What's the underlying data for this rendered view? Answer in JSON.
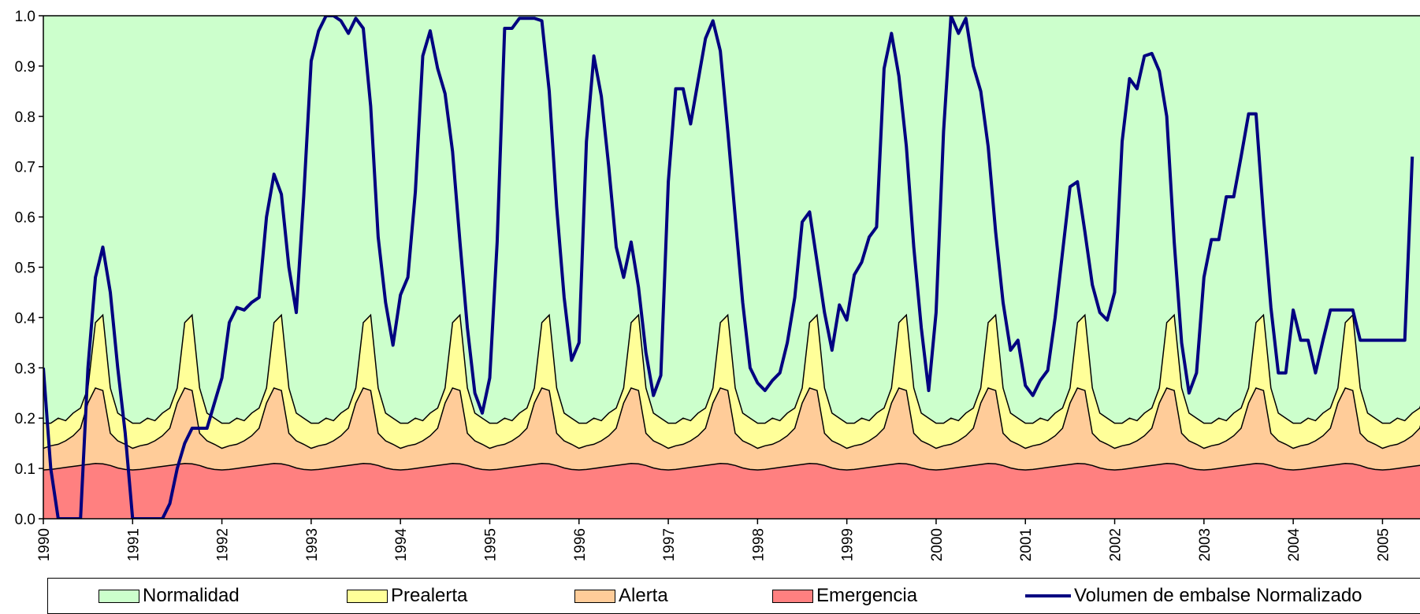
{
  "chart_data": {
    "type": "area",
    "title": "",
    "xlabel": "",
    "ylabel": "",
    "ylim": [
      0,
      1
    ],
    "xlim": [
      1990,
      2005.42
    ],
    "grid": false,
    "legend_position": "bottom",
    "y_ticks": [
      "0.0",
      "0.1",
      "0.2",
      "0.3",
      "0.4",
      "0.5",
      "0.6",
      "0.7",
      "0.8",
      "0.9",
      "1.0"
    ],
    "x_ticks": [
      "1990",
      "1991",
      "1992",
      "1993",
      "1994",
      "1995",
      "1996",
      "1997",
      "1998",
      "1999",
      "2000",
      "2001",
      "2002",
      "2003",
      "2004",
      "2005"
    ],
    "monthly_profile": {
      "emergencia": [
        0.097,
        0.098,
        0.1,
        0.102,
        0.104,
        0.106,
        0.108,
        0.11,
        0.109,
        0.106,
        0.101,
        0.098
      ],
      "alerta": [
        0.14,
        0.145,
        0.148,
        0.155,
        0.165,
        0.18,
        0.23,
        0.26,
        0.255,
        0.17,
        0.155,
        0.148
      ],
      "prealerta": [
        0.19,
        0.19,
        0.2,
        0.195,
        0.21,
        0.22,
        0.26,
        0.39,
        0.405,
        0.26,
        0.21,
        0.2
      ]
    },
    "series": [
      {
        "name": "Normalidad",
        "color": "#ccffcc",
        "upper_bound": 1.0
      },
      {
        "name": "Prealerta",
        "color": "#ffff99",
        "upper_bound_profile": "prealerta"
      },
      {
        "name": "Alerta",
        "color": "#ffcc99",
        "upper_bound_profile": "alerta"
      },
      {
        "name": "Emergencia",
        "color": "#ff8080",
        "upper_bound_profile": "emergencia"
      },
      {
        "name": "Volumen de embalse Normalizado",
        "color": "#000080",
        "type": "line",
        "start": 1990.0,
        "step_months": 1,
        "values": [
          0.3,
          0.1,
          0.0,
          0.0,
          0.0,
          0.0,
          0.3,
          0.48,
          0.54,
          0.45,
          0.3,
          0.17,
          0.0,
          0.0,
          0.0,
          0.0,
          0.0,
          0.03,
          0.1,
          0.15,
          0.18,
          0.18,
          0.18,
          0.23,
          0.28,
          0.39,
          0.42,
          0.415,
          0.43,
          0.44,
          0.6,
          0.685,
          0.645,
          0.5,
          0.41,
          0.64,
          0.91,
          0.97,
          1.0,
          1.0,
          0.99,
          0.965,
          0.995,
          0.975,
          0.82,
          0.56,
          0.43,
          0.345,
          0.445,
          0.48,
          0.65,
          0.92,
          0.97,
          0.895,
          0.845,
          0.73,
          0.55,
          0.38,
          0.25,
          0.21,
          0.28,
          0.55,
          0.975,
          0.975,
          0.995,
          0.995,
          0.995,
          0.99,
          0.85,
          0.62,
          0.44,
          0.315,
          0.35,
          0.75,
          0.92,
          0.84,
          0.7,
          0.54,
          0.48,
          0.55,
          0.46,
          0.33,
          0.245,
          0.285,
          0.67,
          0.855,
          0.855,
          0.785,
          0.87,
          0.955,
          0.99,
          0.93,
          0.77,
          0.6,
          0.43,
          0.3,
          0.27,
          0.255,
          0.275,
          0.29,
          0.35,
          0.44,
          0.59,
          0.61,
          0.51,
          0.41,
          0.335,
          0.425,
          0.395,
          0.485,
          0.51,
          0.56,
          0.58,
          0.895,
          0.965,
          0.88,
          0.74,
          0.54,
          0.38,
          0.255,
          0.41,
          0.77,
          1.0,
          0.965,
          0.995,
          0.9,
          0.85,
          0.74,
          0.57,
          0.43,
          0.335,
          0.355,
          0.265,
          0.245,
          0.275,
          0.295,
          0.4,
          0.53,
          0.66,
          0.67,
          0.57,
          0.465,
          0.41,
          0.395,
          0.45,
          0.75,
          0.875,
          0.855,
          0.92,
          0.925,
          0.89,
          0.8,
          0.55,
          0.35,
          0.25,
          0.29,
          0.48,
          0.555,
          0.555,
          0.64,
          0.64,
          0.72,
          0.805,
          0.805,
          0.6,
          0.42,
          0.29,
          0.29,
          0.415,
          0.355,
          0.355,
          0.29,
          0.355,
          0.415,
          0.415,
          0.415,
          0.415,
          0.355,
          0.355,
          0.355,
          0.355,
          0.355,
          0.355,
          0.355,
          0.72
        ]
      }
    ]
  }
}
